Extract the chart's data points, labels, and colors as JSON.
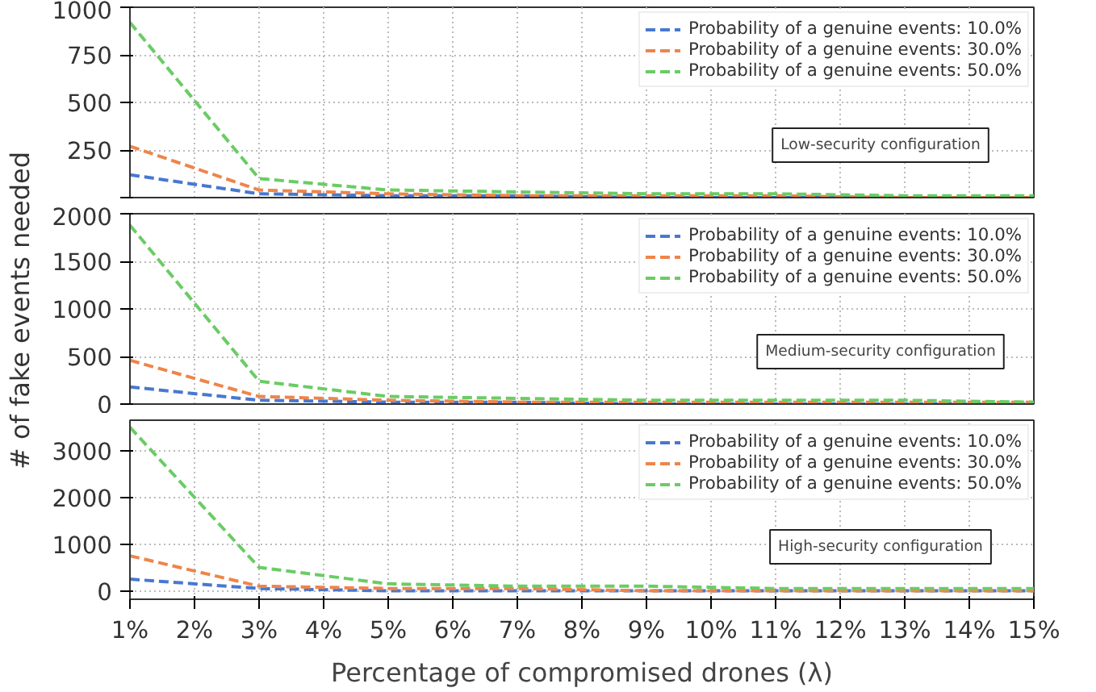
{
  "chart_data": [
    {
      "type": "line",
      "x": [
        1,
        3,
        5,
        7,
        9,
        11,
        13,
        15
      ],
      "xlim": [
        1,
        15
      ],
      "xticks": [
        {
          "value": 1,
          "label": null
        },
        {
          "value": 2,
          "label": null
        },
        {
          "value": 3,
          "label": null
        },
        {
          "value": 4,
          "label": null
        },
        {
          "value": 5,
          "label": null
        },
        {
          "value": 6,
          "label": null
        },
        {
          "value": 7,
          "label": null
        },
        {
          "value": 8,
          "label": null
        },
        {
          "value": 9,
          "label": null
        },
        {
          "value": 10,
          "label": null
        },
        {
          "value": 11,
          "label": null
        },
        {
          "value": 12,
          "label": null
        },
        {
          "value": 13,
          "label": null
        },
        {
          "value": 14,
          "label": null
        },
        {
          "value": 15,
          "label": null
        }
      ],
      "ylim": [
        0,
        1000
      ],
      "yticks": [
        {
          "value": 0,
          "label": null
        },
        250,
        500,
        750,
        1000
      ],
      "tick_labels": "y",
      "grid": true,
      "legend": "top right",
      "line_style": "dashed",
      "marker": "none",
      "annotations": [
        "Low-security configuration"
      ],
      "series": [
        {
          "name": "Probability of a genuine events: 10.0%",
          "color": "#4878d0",
          "values": [
            120,
            20,
            10,
            10,
            0,
            0,
            0,
            0
          ]
        },
        {
          "name": "Probability of a genuine events: 30.0%",
          "color": "#ee854a",
          "values": [
            270,
            40,
            20,
            10,
            10,
            10,
            0,
            0
          ]
        },
        {
          "name": "Probability of a genuine events: 50.0%",
          "color": "#6acc64",
          "values": [
            920,
            100,
            40,
            30,
            20,
            20,
            10,
            10
          ]
        }
      ]
    },
    {
      "type": "line",
      "x": [
        1,
        3,
        5,
        7,
        9,
        11,
        13,
        15
      ],
      "xlim": [
        1,
        15
      ],
      "xticks": [
        {
          "value": 1,
          "label": null
        },
        {
          "value": 2,
          "label": null
        },
        {
          "value": 3,
          "label": null
        },
        {
          "value": 4,
          "label": null
        },
        {
          "value": 5,
          "label": null
        },
        {
          "value": 6,
          "label": null
        },
        {
          "value": 7,
          "label": null
        },
        {
          "value": 8,
          "label": null
        },
        {
          "value": 9,
          "label": null
        },
        {
          "value": 10,
          "label": null
        },
        {
          "value": 11,
          "label": null
        },
        {
          "value": 12,
          "label": null
        },
        {
          "value": 13,
          "label": null
        },
        {
          "value": 14,
          "label": null
        },
        {
          "value": 15,
          "label": null
        }
      ],
      "ylim": [
        0,
        2000
      ],
      "yticks": [
        0,
        500,
        1000,
        1500,
        2000
      ],
      "tick_labels": "y",
      "grid": true,
      "legend": "top right",
      "line_style": "dashed",
      "marker": "none",
      "ylabel": "# of fake events needed",
      "annotations": [
        "Medium-security configuration"
      ],
      "series": [
        {
          "name": "Probability of a genuine events: 10.0%",
          "color": "#4878d0",
          "values": [
            180,
            40,
            20,
            20,
            0,
            0,
            0,
            0
          ]
        },
        {
          "name": "Probability of a genuine events: 30.0%",
          "color": "#ee854a",
          "values": [
            460,
            80,
            40,
            20,
            20,
            20,
            20,
            20
          ]
        },
        {
          "name": "Probability of a genuine events: 50.0%",
          "color": "#6acc64",
          "values": [
            1880,
            240,
            80,
            60,
            40,
            40,
            40,
            20
          ]
        }
      ]
    },
    {
      "type": "line",
      "x": [
        1,
        3,
        5,
        7,
        9,
        11,
        13,
        15
      ],
      "xlim": [
        1,
        15
      ],
      "xticks": [
        {
          "value": 1,
          "label": "1%"
        },
        {
          "value": 2,
          "label": "2%"
        },
        {
          "value": 3,
          "label": "3%"
        },
        {
          "value": 4,
          "label": "4%"
        },
        {
          "value": 5,
          "label": "5%"
        },
        {
          "value": 6,
          "label": "6%"
        },
        {
          "value": 7,
          "label": "7%"
        },
        {
          "value": 8,
          "label": "8%"
        },
        {
          "value": 9,
          "label": "9%"
        },
        {
          "value": 10,
          "label": "10%"
        },
        {
          "value": 11,
          "label": "11%"
        },
        {
          "value": 12,
          "label": "12%"
        },
        {
          "value": 13,
          "label": "13%"
        },
        {
          "value": 14,
          "label": "14%"
        },
        {
          "value": 15,
          "label": "15%"
        }
      ],
      "ylim": [
        -180,
        3650
      ],
      "yticks": [
        0,
        1000,
        2000,
        3000
      ],
      "grid": true,
      "legend": "top right",
      "line_style": "dashed",
      "marker": "none",
      "xlabel": "Percentage of compromised drones (λ)",
      "annotations": [
        "High-security configuration"
      ],
      "series": [
        {
          "name": "Probability of a genuine events: 10.0%",
          "color": "#4878d0",
          "values": [
            250,
            50,
            0,
            0,
            0,
            0,
            0,
            0
          ]
        },
        {
          "name": "Probability of a genuine events: 30.0%",
          "color": "#ee854a",
          "values": [
            750,
            100,
            50,
            50,
            0,
            0,
            0,
            0
          ]
        },
        {
          "name": "Probability of a genuine events: 50.0%",
          "color": "#6acc64",
          "values": [
            3500,
            500,
            150,
            100,
            100,
            50,
            50,
            50
          ]
        }
      ]
    }
  ]
}
